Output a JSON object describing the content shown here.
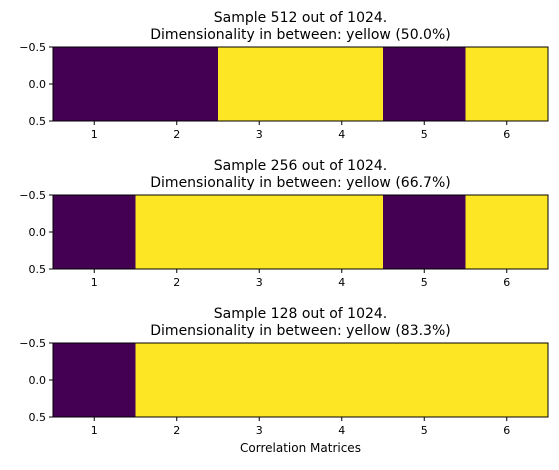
{
  "chart_data": [
    {
      "type": "heatmap",
      "title_line1": "Sample 512 out of 1024.",
      "title_line2": "Dimensionality in between: yellow (50.0%)",
      "categories": [
        "1",
        "2",
        "3",
        "4",
        "5",
        "6"
      ],
      "values": [
        0,
        0,
        1,
        1,
        0,
        1
      ],
      "yticks": [
        "−0.5",
        "0.0",
        "0.5"
      ],
      "ylim": [
        -0.5,
        0.5
      ],
      "xlabel": ""
    },
    {
      "type": "heatmap",
      "title_line1": "Sample 256 out of 1024.",
      "title_line2": "Dimensionality in between: yellow (66.7%)",
      "categories": [
        "1",
        "2",
        "3",
        "4",
        "5",
        "6"
      ],
      "values": [
        0,
        1,
        1,
        1,
        0,
        1
      ],
      "yticks": [
        "−0.5",
        "0.0",
        "0.5"
      ],
      "ylim": [
        -0.5,
        0.5
      ],
      "xlabel": ""
    },
    {
      "type": "heatmap",
      "title_line1": "Sample 128 out of 1024.",
      "title_line2": "Dimensionality in between: yellow (83.3%)",
      "categories": [
        "1",
        "2",
        "3",
        "4",
        "5",
        "6"
      ],
      "values": [
        0,
        1,
        1,
        1,
        1,
        1
      ],
      "yticks": [
        "−0.5",
        "0.0",
        "0.5"
      ],
      "ylim": [
        -0.5,
        0.5
      ],
      "xlabel": "Correlation Matrices"
    }
  ],
  "colors": {
    "low": "#440154",
    "high": "#fde725"
  }
}
